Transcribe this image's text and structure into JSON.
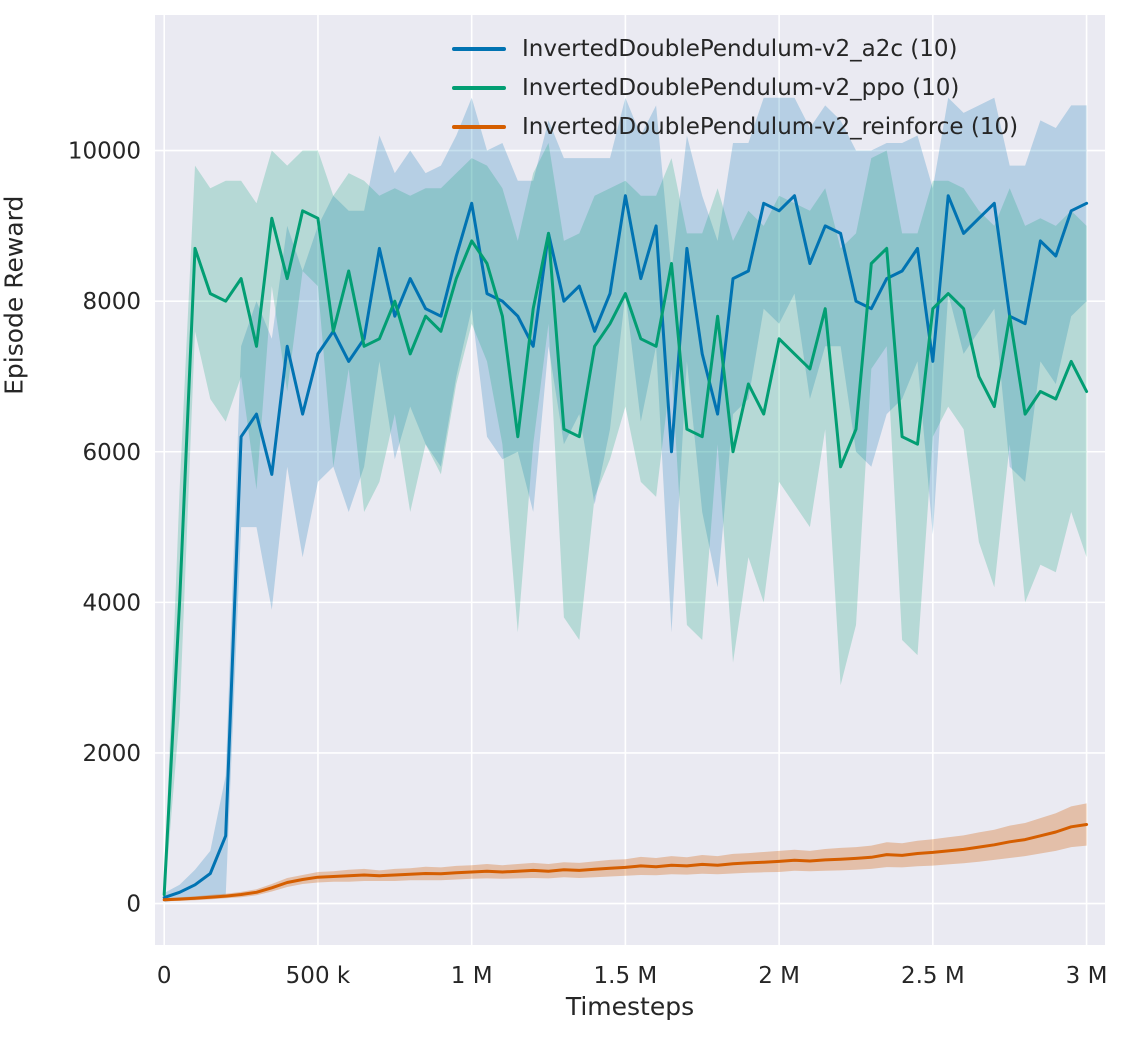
{
  "chart_data": {
    "type": "line",
    "title": "",
    "xlabel": "Timesteps",
    "ylabel": "Episode Reward",
    "grid": true,
    "legend_position": "upper center",
    "background_color": "#eaeaf2",
    "grid_color": "#ffffff",
    "text_color": "#262626",
    "xlim": [
      -30000,
      3060000
    ],
    "ylim": [
      -550,
      11800
    ],
    "x_ticks": [
      {
        "value": 0,
        "label": "0"
      },
      {
        "value": 500000,
        "label": "500 k"
      },
      {
        "value": 1000000,
        "label": "1 M"
      },
      {
        "value": 1500000,
        "label": "1.5 M"
      },
      {
        "value": 2000000,
        "label": "2 M"
      },
      {
        "value": 2500000,
        "label": "2.5 M"
      },
      {
        "value": 3000000,
        "label": "3 M"
      }
    ],
    "y_ticks": [
      {
        "value": 0,
        "label": "0"
      },
      {
        "value": 2000,
        "label": "2000"
      },
      {
        "value": 4000,
        "label": "4000"
      },
      {
        "value": 6000,
        "label": "6000"
      },
      {
        "value": 8000,
        "label": "8000"
      },
      {
        "value": 10000,
        "label": "10000"
      }
    ],
    "x": [
      0,
      50000,
      100000,
      150000,
      200000,
      250000,
      300000,
      350000,
      400000,
      450000,
      500000,
      550000,
      600000,
      650000,
      700000,
      750000,
      800000,
      850000,
      900000,
      950000,
      1000000,
      1050000,
      1100000,
      1150000,
      1200000,
      1250000,
      1300000,
      1350000,
      1400000,
      1450000,
      1500000,
      1550000,
      1600000,
      1650000,
      1700000,
      1750000,
      1800000,
      1850000,
      1900000,
      1950000,
      2000000,
      2050000,
      2100000,
      2150000,
      2200000,
      2250000,
      2300000,
      2350000,
      2400000,
      2450000,
      2500000,
      2550000,
      2600000,
      2650000,
      2700000,
      2750000,
      2800000,
      2850000,
      2900000,
      2950000,
      3000000
    ],
    "series": [
      {
        "name": "InvertedDoublePendulum-v2_a2c (10)",
        "color": "#0173b2",
        "band_opacity": 0.22,
        "values": [
          80,
          150,
          250,
          400,
          900,
          6200,
          6500,
          5700,
          7400,
          6500,
          7300,
          7600,
          7200,
          7500,
          8700,
          7800,
          8300,
          7900,
          7800,
          8600,
          9300,
          8100,
          8000,
          7800,
          7400,
          8900,
          8000,
          8200,
          7600,
          8100,
          9400,
          8300,
          9000,
          6000,
          8700,
          7300,
          6500,
          8300,
          8400,
          9300,
          9200,
          9400,
          8500,
          9000,
          8900,
          8000,
          7900,
          8300,
          8400,
          8700,
          7200,
          9400,
          8900,
          9100,
          9300,
          7800,
          7700,
          8800,
          8600,
          9200,
          9300
        ],
        "band": [
          60,
          100,
          200,
          300,
          800,
          1200,
          1500,
          1800,
          1600,
          1900,
          1700,
          1800,
          2000,
          1700,
          1500,
          1900,
          1700,
          1800,
          2000,
          1600,
          1400,
          1900,
          2100,
          1800,
          2200,
          1500,
          1900,
          1700,
          2300,
          1800,
          1300,
          1900,
          1600,
          2400,
          1500,
          2100,
          2300,
          1800,
          1700,
          1400,
          1500,
          1300,
          1800,
          1600,
          1500,
          2000,
          2100,
          1800,
          1700,
          1500,
          2300,
          1300,
          1600,
          1500,
          1400,
          2000,
          2100,
          1600,
          1700,
          1400,
          1300
        ]
      },
      {
        "name": "InvertedDoublePendulum-v2_ppo (10)",
        "color": "#029e73",
        "band_opacity": 0.22,
        "values": [
          120,
          4000,
          8700,
          8100,
          8000,
          8300,
          7400,
          9100,
          8300,
          9200,
          9100,
          7600,
          8400,
          7400,
          7500,
          8000,
          7300,
          7800,
          7600,
          8300,
          8800,
          8500,
          7800,
          6200,
          7900,
          8900,
          6300,
          6200,
          7400,
          7700,
          8100,
          7500,
          7400,
          8500,
          6300,
          6200,
          7800,
          6000,
          6900,
          6500,
          7500,
          7300,
          7100,
          7900,
          5800,
          6300,
          8500,
          8700,
          6200,
          6100,
          7900,
          8100,
          7900,
          7000,
          6600,
          7800,
          6500,
          6800,
          6700,
          7200,
          6800
        ],
        "band": [
          100,
          1500,
          1100,
          1400,
          1600,
          1300,
          1900,
          900,
          1500,
          800,
          900,
          1800,
          1300,
          2200,
          1900,
          1500,
          2100,
          1700,
          1900,
          1400,
          1100,
          1300,
          1700,
          2600,
          1800,
          1200,
          2500,
          2700,
          2000,
          1800,
          1500,
          1900,
          2000,
          1400,
          2600,
          2700,
          1700,
          2800,
          2300,
          2500,
          1900,
          2000,
          2100,
          1600,
          2900,
          2600,
          1400,
          1300,
          2700,
          2800,
          1700,
          1500,
          1600,
          2200,
          2400,
          1700,
          2500,
          2300,
          2300,
          2000,
          2200
        ]
      },
      {
        "name": "InvertedDoublePendulum-v2_reinforce (10)",
        "color": "#d55e00",
        "band_opacity": 0.3,
        "values": [
          50,
          60,
          70,
          85,
          100,
          120,
          150,
          210,
          280,
          320,
          350,
          360,
          370,
          380,
          370,
          380,
          390,
          400,
          395,
          410,
          420,
          430,
          420,
          430,
          440,
          430,
          450,
          440,
          455,
          470,
          480,
          500,
          490,
          510,
          500,
          520,
          510,
          530,
          540,
          550,
          560,
          575,
          565,
          580,
          590,
          600,
          615,
          650,
          640,
          665,
          680,
          700,
          720,
          750,
          780,
          820,
          850,
          900,
          950,
          1020,
          1050
        ],
        "band": [
          20,
          25,
          25,
          30,
          30,
          35,
          40,
          50,
          60,
          60,
          70,
          70,
          80,
          80,
          70,
          80,
          80,
          90,
          85,
          90,
          90,
          95,
          90,
          95,
          100,
          95,
          100,
          100,
          105,
          110,
          110,
          120,
          115,
          120,
          115,
          125,
          120,
          130,
          130,
          135,
          140,
          140,
          135,
          145,
          150,
          150,
          155,
          165,
          160,
          170,
          175,
          180,
          185,
          195,
          200,
          215,
          220,
          235,
          250,
          270,
          280
        ]
      }
    ]
  }
}
